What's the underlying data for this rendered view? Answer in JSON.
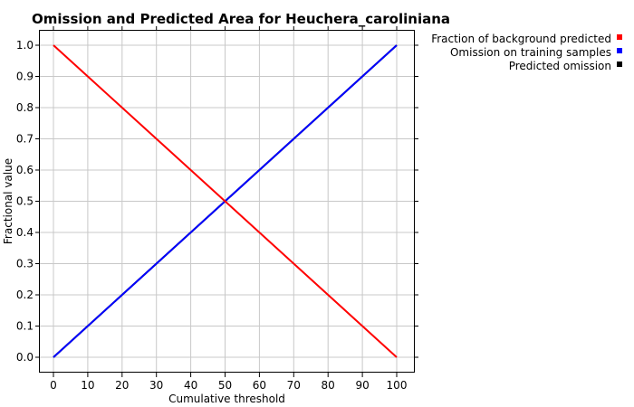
{
  "chart_data": {
    "type": "line",
    "title": "Omission and Predicted Area for Heuchera_caroliniana",
    "xlabel": "Cumulative threshold",
    "ylabel": "Fractional value",
    "xlim": [
      0,
      100
    ],
    "ylim": [
      0,
      1.0
    ],
    "x_ticks": [
      0,
      10,
      20,
      30,
      40,
      50,
      60,
      70,
      80,
      90,
      100
    ],
    "y_ticks": [
      0.0,
      0.1,
      0.2,
      0.3,
      0.4,
      0.5,
      0.6,
      0.7,
      0.8,
      0.9,
      1.0
    ],
    "x_tick_labels": [
      "0",
      "10",
      "20",
      "30",
      "40",
      "50",
      "60",
      "70",
      "80",
      "90",
      "100"
    ],
    "y_tick_labels": [
      "0.0",
      "0.1",
      "0.2",
      "0.3",
      "0.4",
      "0.5",
      "0.6",
      "0.7",
      "0.8",
      "0.9",
      "1.0"
    ],
    "grid": true,
    "legend_position": "top-right outside plot",
    "series": [
      {
        "name": "Fraction of background predicted",
        "color": "#ff0000",
        "x": [
          0,
          10,
          20,
          30,
          40,
          50,
          60,
          70,
          80,
          90,
          100
        ],
        "y": [
          1.0,
          0.9,
          0.8,
          0.7,
          0.6,
          0.5,
          0.4,
          0.3,
          0.2,
          0.1,
          0.0
        ]
      },
      {
        "name": "Omission on training samples",
        "color": "#0000ff",
        "x": [
          0,
          10,
          20,
          30,
          40,
          50,
          60,
          70,
          80,
          90,
          100
        ],
        "y": [
          0.0,
          0.1,
          0.2,
          0.3,
          0.4,
          0.5,
          0.6,
          0.7,
          0.8,
          0.9,
          1.0
        ]
      },
      {
        "name": "Predicted omission",
        "color": "#000000",
        "x": [
          0,
          10,
          20,
          30,
          40,
          50,
          60,
          70,
          80,
          90,
          100
        ],
        "y": [
          0.0,
          0.1,
          0.2,
          0.3,
          0.4,
          0.5,
          0.6,
          0.7,
          0.8,
          0.9,
          1.0
        ]
      }
    ]
  }
}
